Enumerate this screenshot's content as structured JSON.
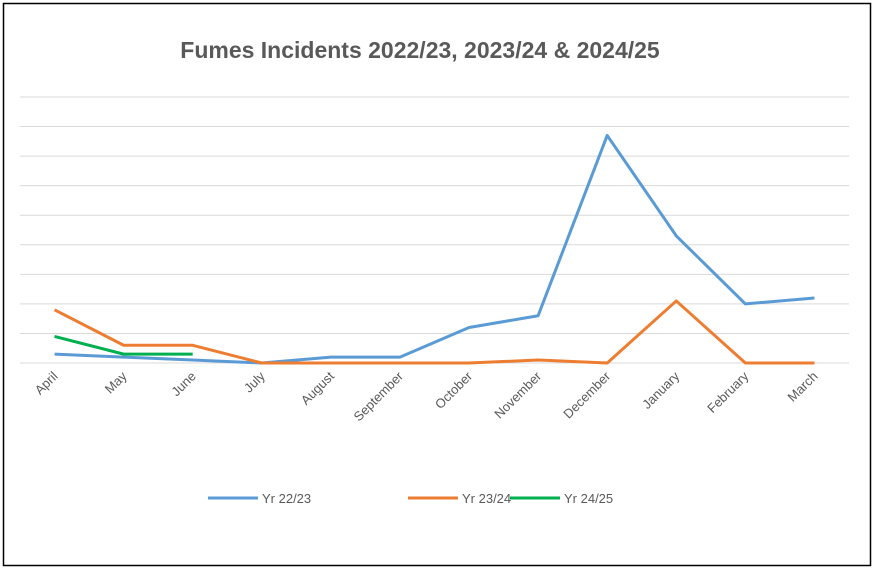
{
  "chart_data": {
    "type": "line",
    "title": "Fumes Incidents 2022/23, 2023/24 & 2024/25",
    "categories": [
      "April",
      "May",
      "June",
      "July",
      "August",
      "September",
      "October",
      "November",
      "December",
      "January",
      "February",
      "March"
    ],
    "series": [
      {
        "name": "Yr 22/23",
        "color": "#5b9bd5",
        "values": [
          0.3,
          0.2,
          0.1,
          0,
          0.2,
          0.2,
          1.2,
          1.6,
          7.7,
          4.3,
          2,
          2.2
        ]
      },
      {
        "name": "Yr 23/24",
        "color": "#ed7d31",
        "values": [
          1.8,
          0.6,
          0.6,
          0,
          0,
          0,
          0,
          0.1,
          0,
          2.1,
          0,
          0
        ]
      },
      {
        "name": "Yr 24/25",
        "color": "#00b050",
        "values": [
          0.9,
          0.3,
          0.3,
          null,
          null,
          null,
          null,
          null,
          null,
          null,
          null,
          null
        ]
      }
    ],
    "ylim": [
      0,
      9
    ],
    "yticks": [
      0,
      1,
      2,
      3,
      4,
      5,
      6,
      7,
      8,
      9
    ],
    "grid": true,
    "legend": "bottom"
  }
}
